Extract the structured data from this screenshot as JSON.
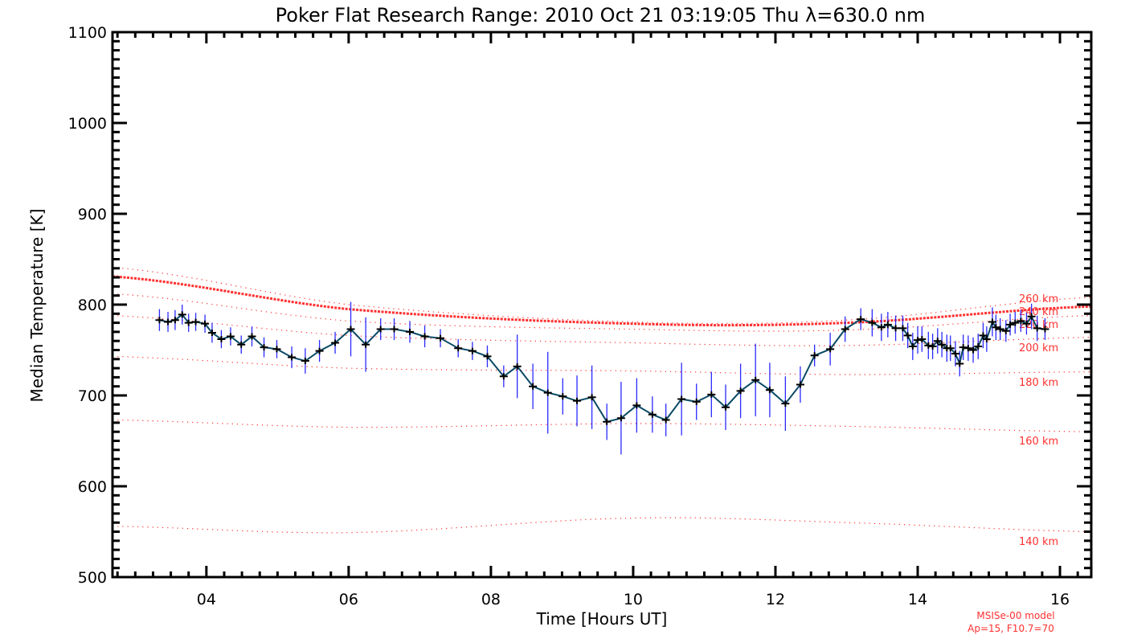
{
  "chart_data": {
    "type": "line",
    "title": "Poker Flat Research Range: 2010 Oct 21 03:19:05 Thu λ=630.0 nm",
    "xlabel": "Time [Hours UT]",
    "ylabel": "Median Temperature [K]",
    "xlim": [
      2.68,
      16.44
    ],
    "ylim": [
      500,
      1100
    ],
    "xticks": [
      4,
      6,
      8,
      10,
      12,
      14,
      16
    ],
    "xtick_labels": [
      "04",
      "06",
      "08",
      "10",
      "12",
      "14",
      "16"
    ],
    "yticks": [
      500,
      600,
      700,
      800,
      900,
      1000,
      1100
    ],
    "ytick_labels": [
      "500",
      "600",
      "700",
      "800",
      "900",
      "1000",
      "1100"
    ],
    "grid": false,
    "colors": {
      "line": "#0a4a66",
      "errorbar": "#2a2aff",
      "marker": "#000000",
      "model": "#ff3030"
    },
    "series": [
      {
        "name": "Median Temperature",
        "x": [
          3.34,
          3.46,
          3.56,
          3.66,
          3.75,
          3.85,
          3.98,
          4.08,
          4.21,
          4.34,
          4.49,
          4.64,
          4.81,
          4.99,
          5.2,
          5.39,
          5.59,
          5.81,
          6.03,
          6.24,
          6.45,
          6.64,
          6.86,
          7.07,
          7.29,
          7.54,
          7.74,
          7.95,
          8.18,
          8.37,
          8.59,
          8.8,
          9.01,
          9.21,
          9.42,
          9.63,
          9.83,
          10.05,
          10.27,
          10.46,
          10.68,
          10.89,
          11.1,
          11.3,
          11.51,
          11.72,
          11.92,
          12.14,
          12.35,
          12.55,
          12.77,
          12.98,
          13.2,
          13.36,
          13.49,
          13.58,
          13.69,
          13.79,
          13.86,
          13.93,
          14.0,
          14.06,
          14.15,
          14.21,
          14.28,
          14.34,
          14.41,
          14.46,
          14.53,
          14.59,
          14.64,
          14.71,
          14.78,
          14.85,
          14.92,
          14.97,
          15.05,
          15.1,
          15.16,
          15.24,
          15.3,
          15.37,
          15.45,
          15.53,
          15.6,
          15.68,
          15.79
        ],
        "y": [
          783,
          781,
          783,
          789,
          780,
          781,
          779,
          769,
          762,
          765,
          756,
          765,
          753,
          751,
          742,
          738,
          749,
          758,
          773,
          756,
          773,
          773,
          770,
          765,
          763,
          752,
          749,
          743,
          721,
          732,
          710,
          703,
          699,
          694,
          698,
          671,
          675,
          689,
          679,
          673,
          696,
          693,
          701,
          687,
          705,
          717,
          706,
          691,
          712,
          744,
          751,
          773,
          784,
          780,
          775,
          778,
          774,
          774,
          766,
          754,
          761,
          762,
          755,
          754,
          760,
          756,
          752,
          752,
          746,
          735,
          753,
          752,
          750,
          754,
          766,
          762,
          781,
          775,
          773,
          771,
          778,
          780,
          782,
          779,
          787,
          774,
          773
        ],
        "yerr": [
          12,
          11,
          11,
          11,
          10,
          10,
          10,
          11,
          10,
          10,
          10,
          11,
          11,
          10,
          12,
          14,
          12,
          12,
          30,
          30,
          12,
          12,
          12,
          12,
          10,
          10,
          10,
          12,
          12,
          35,
          25,
          45,
          20,
          28,
          35,
          20,
          40,
          30,
          20,
          18,
          40,
          20,
          25,
          25,
          30,
          40,
          30,
          30,
          20,
          12,
          18,
          14,
          12,
          15,
          15,
          14,
          14,
          14,
          14,
          15,
          15,
          14,
          15,
          14,
          14,
          14,
          15,
          14,
          14,
          14,
          14,
          14,
          14,
          14,
          14,
          14,
          16,
          14,
          12,
          12,
          12,
          12,
          12,
          12,
          14,
          14,
          12
        ]
      }
    ],
    "model": {
      "label_line1": "MSISe-00 model",
      "label_line2": "Ap=15, F10.7=70",
      "x": [
        2.68,
        6,
        10,
        13,
        16.44
      ],
      "curves": [
        {
          "label": "260 km",
          "thick": false,
          "y": [
            841,
            800,
            781,
            783,
            808
          ]
        },
        {
          "label": "240 km",
          "thick": true,
          "y": [
            831,
            795,
            779,
            780,
            798
          ]
        },
        {
          "label": "220 km",
          "thick": false,
          "y": [
            812,
            782,
            773,
            772,
            788
          ]
        },
        {
          "label": "200 km",
          "thick": false,
          "y": [
            788,
            766,
            758,
            755,
            764
          ]
        },
        {
          "label": "180 km",
          "thick": false,
          "y": [
            743,
            730,
            727,
            723,
            726
          ]
        },
        {
          "label": "160 km",
          "thick": false,
          "y": [
            673,
            665,
            669,
            666,
            660
          ]
        },
        {
          "label": "140 km",
          "thick": false,
          "y": [
            556,
            549,
            565,
            560,
            550
          ]
        }
      ]
    }
  }
}
